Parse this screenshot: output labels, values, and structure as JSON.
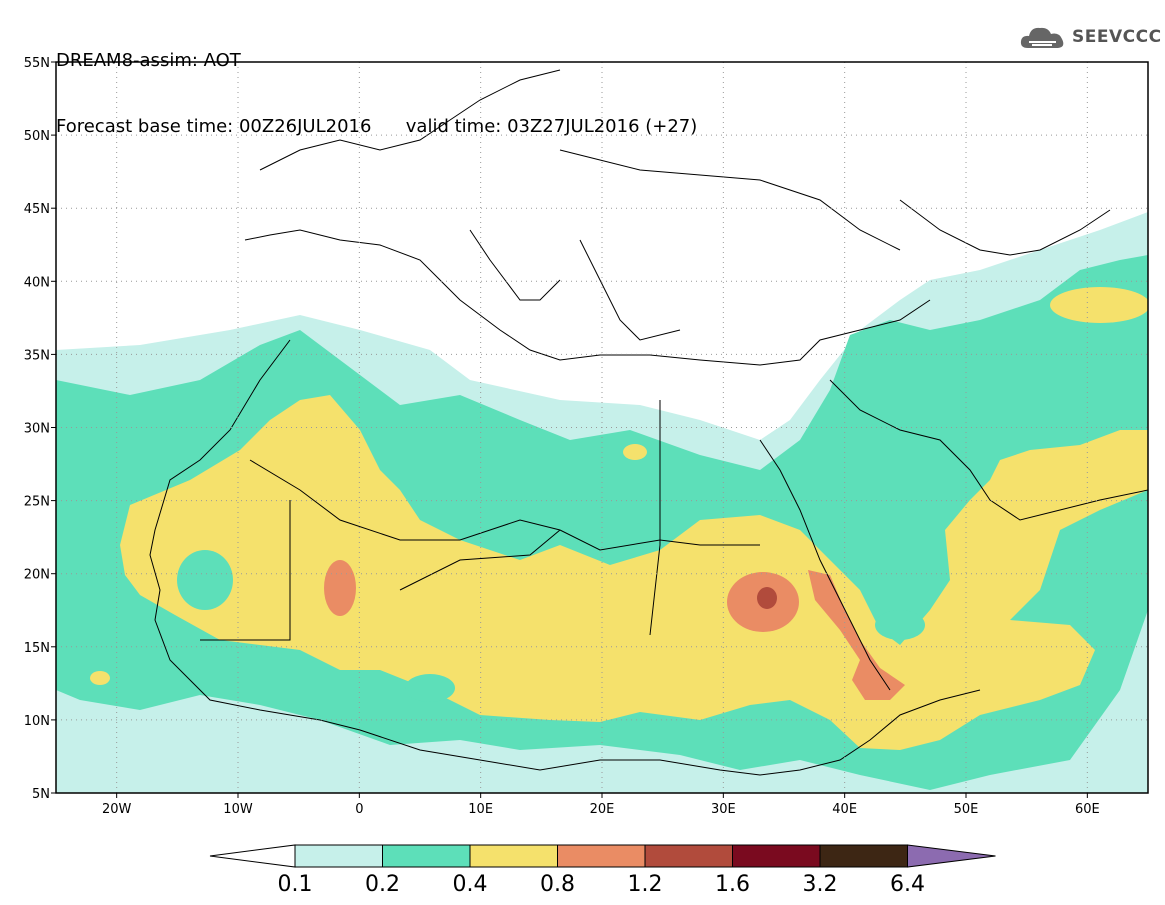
{
  "header": {
    "line1": "DREAM8-assim: AOT",
    "line2_left": "Forecast base time: 00Z26JUL2016",
    "line2_right": "valid time: 03Z27JUL2016 (+27)"
  },
  "logo": {
    "icon": "cloud-logo-icon",
    "text": "SEEVCCC"
  },
  "map": {
    "lat_labels": [
      "55N",
      "50N",
      "45N",
      "40N",
      "35N",
      "30N",
      "25N",
      "20N",
      "15N",
      "10N",
      "5N"
    ],
    "lon_labels": [
      "20W",
      "10W",
      "0",
      "10E",
      "20E",
      "30E",
      "40E",
      "50E",
      "60E"
    ],
    "lat_range": [
      5,
      55
    ],
    "lon_range": [
      -25,
      65
    ],
    "grid": true
  },
  "legend": {
    "levels": [
      "0.1",
      "0.2",
      "0.4",
      "0.8",
      "1.2",
      "1.6",
      "3.2",
      "6.4"
    ],
    "colors": [
      "#c6f0ea",
      "#5ddfb9",
      "#f5e16c",
      "#ea8c64",
      "#b14b3c",
      "#7a0a1f",
      "#3d2614",
      "#8c6bb0"
    ],
    "under_color": "#ffffff"
  },
  "colors": {
    "aot_0_1": "#c6f0ea",
    "aot_0_2": "#5ddfb9",
    "aot_0_4": "#f5e16c",
    "aot_0_8": "#ea8c64",
    "aot_1_2": "#b14b3c"
  }
}
